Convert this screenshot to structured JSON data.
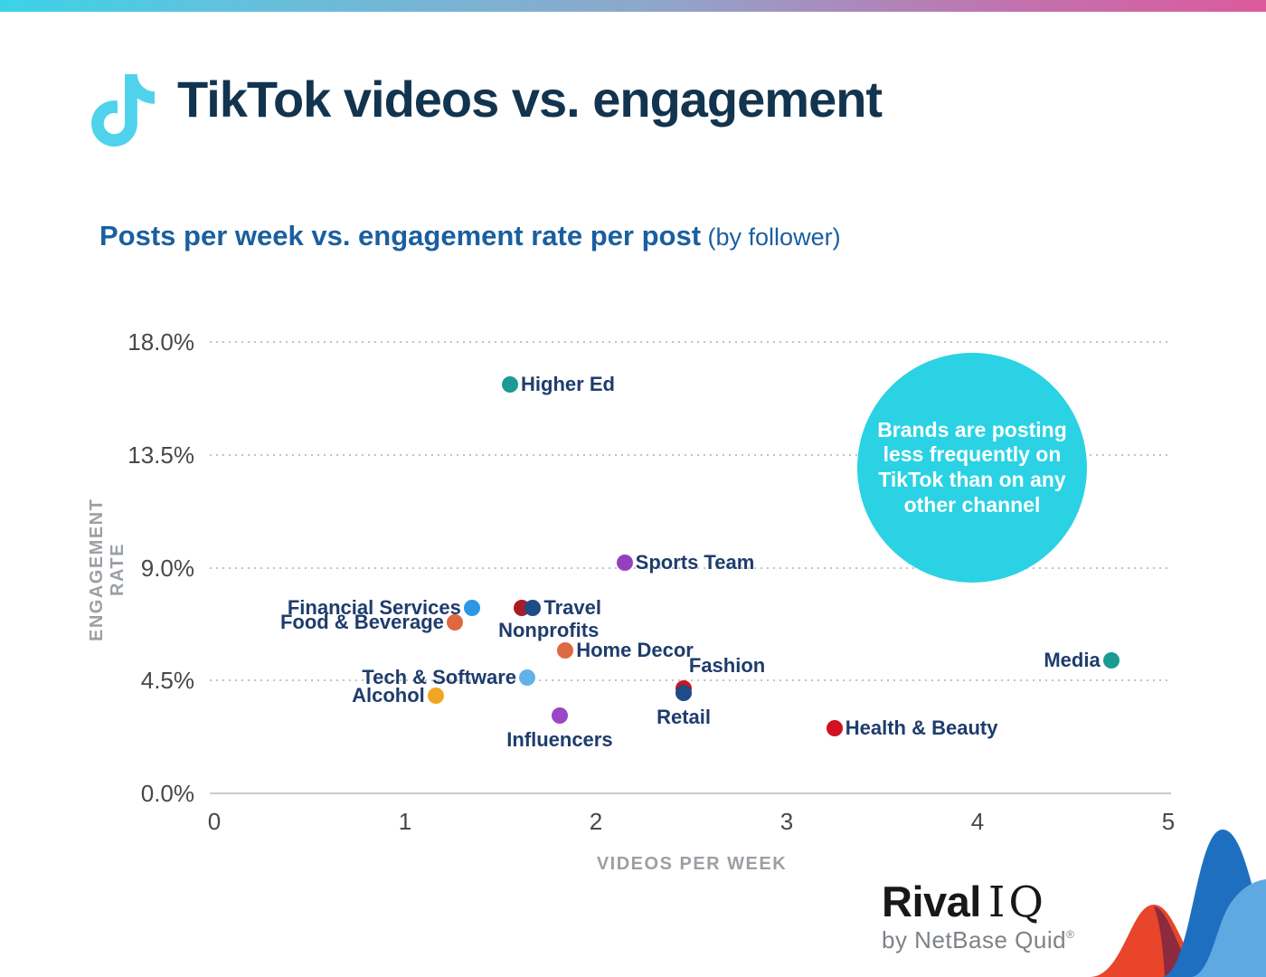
{
  "page": {
    "title": "TikTok videos vs. engagement",
    "subtitle_bold": "Posts per week vs. engagement rate per post",
    "subtitle_light": " (by follower)"
  },
  "callout": {
    "text": "Brands are posting less frequently on TikTok than on any other channel",
    "lines": [
      "Brands are posting",
      "less frequently on",
      "TikTok than on any",
      "other channel"
    ],
    "color": "#2bd2e4"
  },
  "branding": {
    "logo_main": "Rival",
    "logo_suffix": "IQ",
    "logo_sub": "by NetBase Quid",
    "registered": "®"
  },
  "icons": {
    "tiktok_color": "#4fd2ec"
  },
  "chart_data": {
    "type": "scatter",
    "title": "Posts per week vs. engagement rate per post (by follower)",
    "xlabel": "VIDEOS PER WEEK",
    "ylabel": "ENGAGEMENT RATE",
    "xlim": [
      0,
      5
    ],
    "ylim": [
      0,
      18
    ],
    "x_ticks": [
      {
        "label": "0",
        "value": 0
      },
      {
        "label": "1",
        "value": 1
      },
      {
        "label": "2",
        "value": 2
      },
      {
        "label": "3",
        "value": 3
      },
      {
        "label": "4",
        "value": 4
      },
      {
        "label": "5",
        "value": 5
      }
    ],
    "y_ticks": [
      {
        "label": "0.0%",
        "value": 0
      },
      {
        "label": "4.5%",
        "value": 4.5
      },
      {
        "label": "9.0%",
        "value": 9
      },
      {
        "label": "13.5%",
        "value": 13.5
      },
      {
        "label": "18.0%",
        "value": 18
      }
    ],
    "grid": "horizontal-dotted",
    "legend": "none",
    "units": {
      "x": "videos per week",
      "y": "engagement rate % per post by follower"
    },
    "points": [
      {
        "name": "Higher Ed",
        "x": 1.55,
        "y": 16.3,
        "color": "#1c9a94",
        "label_side": "right"
      },
      {
        "name": "Sports Team",
        "x": 2.15,
        "y": 9.2,
        "color": "#9640bf",
        "label_side": "right"
      },
      {
        "name": "Financial Services",
        "x": 1.35,
        "y": 7.4,
        "color": "#2d96e6",
        "label_side": "left"
      },
      {
        "name": "Nonprofits",
        "x": 1.61,
        "y": 7.4,
        "color": "#a81c26",
        "label_side": "below",
        "label_dx": 30,
        "label_dy": 1
      },
      {
        "name": "Travel",
        "x": 1.67,
        "y": 7.4,
        "color": "#1d4c86",
        "label_side": "right"
      },
      {
        "name": "Food & Beverage",
        "x": 1.26,
        "y": 6.8,
        "color": "#e0673f",
        "label_side": "left"
      },
      {
        "name": "Home Decor",
        "x": 1.84,
        "y": 5.7,
        "color": "#dd6a42",
        "label_side": "right"
      },
      {
        "name": "Media",
        "x": 4.7,
        "y": 5.3,
        "color": "#1c9a94",
        "label_side": "left"
      },
      {
        "name": "Tech & Software",
        "x": 1.64,
        "y": 4.6,
        "color": "#62b2e8",
        "label_side": "left"
      },
      {
        "name": "Fashion",
        "x": 2.46,
        "y": 4.2,
        "color": "#cf1322",
        "label_side": "above",
        "label_dx": 48
      },
      {
        "name": "Retail",
        "x": 2.46,
        "y": 4.0,
        "color": "#1d4c86",
        "label_side": "below",
        "label_dy": 3
      },
      {
        "name": "Alcohol",
        "x": 1.16,
        "y": 3.9,
        "color": "#f1a623",
        "label_side": "left"
      },
      {
        "name": "Influencers",
        "x": 1.81,
        "y": 3.1,
        "color": "#9a46c6",
        "label_side": "below",
        "label_dy": 3
      },
      {
        "name": "Health & Beauty",
        "x": 3.25,
        "y": 2.6,
        "color": "#cf1322",
        "label_side": "right"
      }
    ]
  }
}
